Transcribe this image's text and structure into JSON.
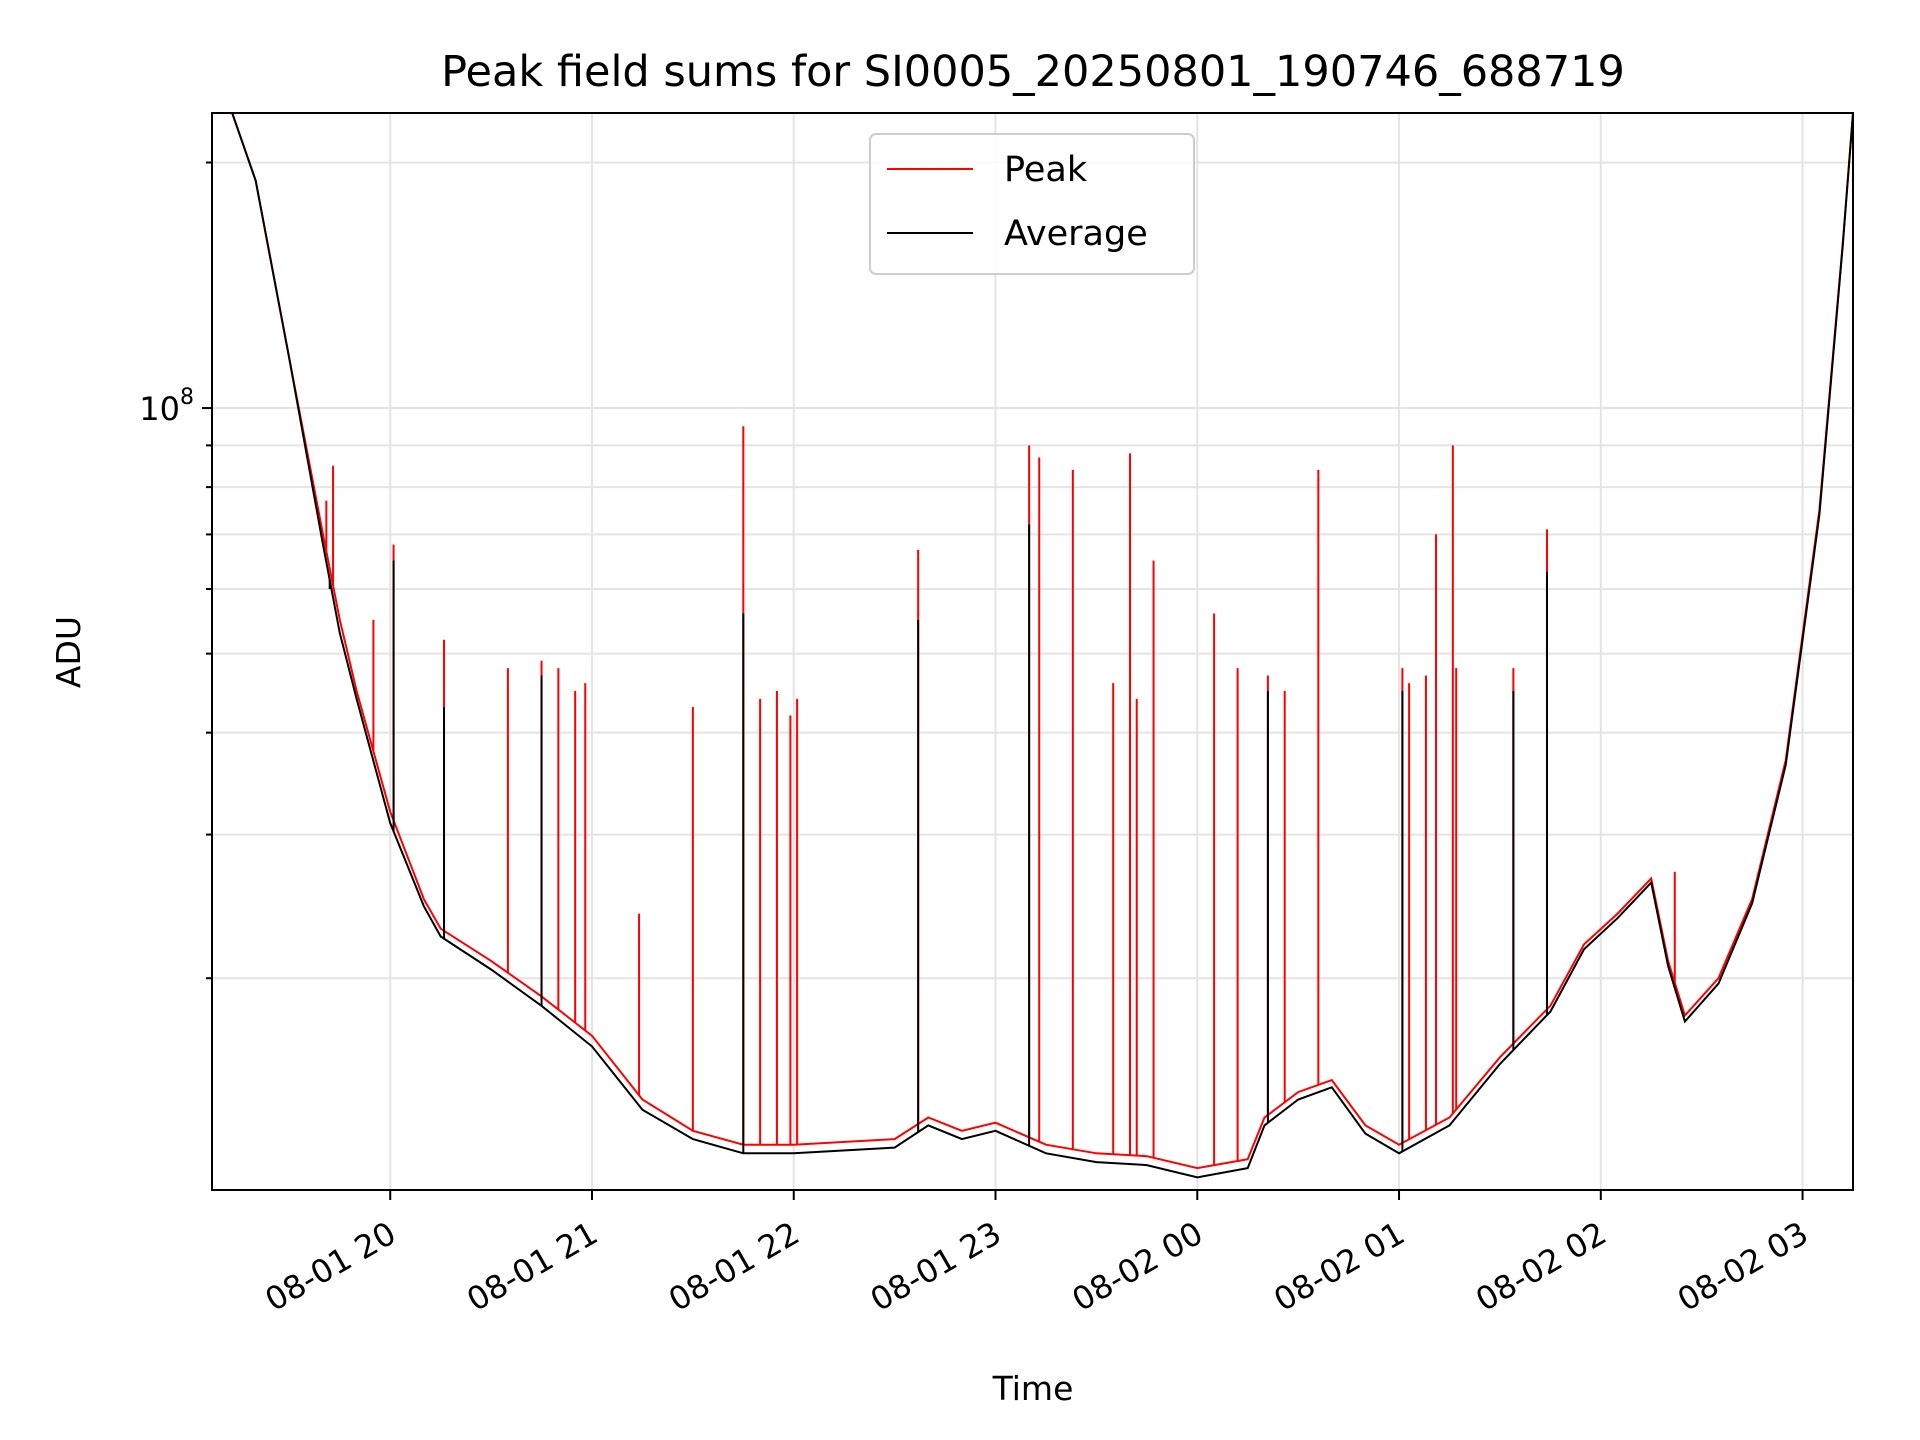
{
  "chart_data": {
    "type": "line",
    "title": "Peak field sums for SI0005_20250801_190746_688719",
    "xlabel": "Time",
    "ylabel": "ADU",
    "y_scale": "log",
    "x_range": [
      "2025-08-01 19:07",
      "2025-08-02 03:15"
    ],
    "ylim": [
      11000000,
      230000000
    ],
    "grid": true,
    "legend_position": "top-center",
    "x_ticks": [
      "08-01 20",
      "08-01 21",
      "08-01 22",
      "08-01 23",
      "08-02 00",
      "08-02 01",
      "08-02 02",
      "08-02 03"
    ],
    "y_tick_label": {
      "base": "10",
      "exponent": "8"
    },
    "series": [
      {
        "name": "Peak",
        "color": "#ff0000",
        "x": [
          "2025-08-01 19:07",
          "2025-08-01 19:13",
          "2025-08-01 19:20",
          "2025-08-01 19:30",
          "2025-08-01 19:40",
          "2025-08-01 19:45",
          "2025-08-01 19:50",
          "2025-08-01 20:00",
          "2025-08-01 20:10",
          "2025-08-01 20:15",
          "2025-08-01 20:30",
          "2025-08-01 20:45",
          "2025-08-01 21:00",
          "2025-08-01 21:15",
          "2025-08-01 21:30",
          "2025-08-01 21:45",
          "2025-08-01 22:00",
          "2025-08-01 22:30",
          "2025-08-01 22:40",
          "2025-08-01 22:50",
          "2025-08-01 23:00",
          "2025-08-01 23:15",
          "2025-08-01 23:30",
          "2025-08-01 23:45",
          "2025-08-02 00:00",
          "2025-08-02 00:15",
          "2025-08-02 00:20",
          "2025-08-02 00:30",
          "2025-08-02 00:40",
          "2025-08-02 00:50",
          "2025-08-02 01:00",
          "2025-08-02 01:15",
          "2025-08-02 01:30",
          "2025-08-02 01:45",
          "2025-08-02 01:55",
          "2025-08-02 02:05",
          "2025-08-02 02:15",
          "2025-08-02 02:20",
          "2025-08-02 02:25",
          "2025-08-02 02:35",
          "2025-08-02 02:45",
          "2025-08-02 02:55",
          "2025-08-02 03:05",
          "2025-08-02 03:12",
          "2025-08-02 03:15"
        ],
        "values": [
          230000000,
          230000000,
          190000000,
          115000000,
          70000000,
          55000000,
          45000000,
          32000000,
          25000000,
          23000000,
          21000000,
          19000000,
          17000000,
          14200000,
          13000000,
          12500000,
          12500000,
          12700000,
          13500000,
          13000000,
          13300000,
          12500000,
          12200000,
          12100000,
          11700000,
          12000000,
          13500000,
          14500000,
          15000000,
          13200000,
          12500000,
          13500000,
          16000000,
          18500000,
          22000000,
          24000000,
          26500000,
          21000000,
          18000000,
          20000000,
          25000000,
          37000000,
          75000000,
          160000000,
          230000000
        ],
        "spikes": [
          {
            "x": "2025-08-01 19:41",
            "value": 77000000
          },
          {
            "x": "2025-08-01 19:43",
            "value": 85000000
          },
          {
            "x": "2025-08-01 19:55",
            "value": 55000000
          },
          {
            "x": "2025-08-01 20:01",
            "value": 68000000
          },
          {
            "x": "2025-08-01 20:16",
            "value": 52000000
          },
          {
            "x": "2025-08-01 20:35",
            "value": 48000000
          },
          {
            "x": "2025-08-01 20:45",
            "value": 49000000
          },
          {
            "x": "2025-08-01 20:50",
            "value": 48000000
          },
          {
            "x": "2025-08-01 20:55",
            "value": 45000000
          },
          {
            "x": "2025-08-01 20:58",
            "value": 46000000
          },
          {
            "x": "2025-08-01 21:14",
            "value": 24000000
          },
          {
            "x": "2025-08-01 21:30",
            "value": 43000000
          },
          {
            "x": "2025-08-01 21:45",
            "value": 95000000
          },
          {
            "x": "2025-08-01 21:50",
            "value": 44000000
          },
          {
            "x": "2025-08-01 21:55",
            "value": 45000000
          },
          {
            "x": "2025-08-01 21:59",
            "value": 42000000
          },
          {
            "x": "2025-08-01 22:01",
            "value": 44000000
          },
          {
            "x": "2025-08-01 22:37",
            "value": 67000000
          },
          {
            "x": "2025-08-01 23:10",
            "value": 90000000
          },
          {
            "x": "2025-08-01 23:13",
            "value": 87000000
          },
          {
            "x": "2025-08-01 23:23",
            "value": 84000000
          },
          {
            "x": "2025-08-01 23:35",
            "value": 46000000
          },
          {
            "x": "2025-08-01 23:40",
            "value": 88000000
          },
          {
            "x": "2025-08-01 23:42",
            "value": 44000000
          },
          {
            "x": "2025-08-01 23:47",
            "value": 65000000
          },
          {
            "x": "2025-08-02 00:05",
            "value": 56000000
          },
          {
            "x": "2025-08-02 00:12",
            "value": 48000000
          },
          {
            "x": "2025-08-02 00:21",
            "value": 47000000
          },
          {
            "x": "2025-08-02 00:26",
            "value": 45000000
          },
          {
            "x": "2025-08-02 00:36",
            "value": 84000000
          },
          {
            "x": "2025-08-02 01:01",
            "value": 48000000
          },
          {
            "x": "2025-08-02 01:03",
            "value": 46000000
          },
          {
            "x": "2025-08-02 01:08",
            "value": 47000000
          },
          {
            "x": "2025-08-02 01:11",
            "value": 70000000
          },
          {
            "x": "2025-08-02 01:16",
            "value": 90000000
          },
          {
            "x": "2025-08-02 01:17",
            "value": 48000000
          },
          {
            "x": "2025-08-02 01:34",
            "value": 48000000
          },
          {
            "x": "2025-08-02 01:44",
            "value": 71000000
          },
          {
            "x": "2025-08-02 02:22",
            "value": 27000000
          }
        ]
      },
      {
        "name": "Average",
        "color": "#000000",
        "x": [
          "2025-08-01 19:07",
          "2025-08-01 19:13",
          "2025-08-01 19:20",
          "2025-08-01 19:30",
          "2025-08-01 19:40",
          "2025-08-01 19:45",
          "2025-08-01 19:50",
          "2025-08-01 20:00",
          "2025-08-01 20:10",
          "2025-08-01 20:15",
          "2025-08-01 20:30",
          "2025-08-01 20:45",
          "2025-08-01 21:00",
          "2025-08-01 21:15",
          "2025-08-01 21:30",
          "2025-08-01 21:45",
          "2025-08-01 22:00",
          "2025-08-01 22:30",
          "2025-08-01 22:40",
          "2025-08-01 22:50",
          "2025-08-01 23:00",
          "2025-08-01 23:15",
          "2025-08-01 23:30",
          "2025-08-01 23:45",
          "2025-08-02 00:00",
          "2025-08-02 00:15",
          "2025-08-02 00:20",
          "2025-08-02 00:30",
          "2025-08-02 00:40",
          "2025-08-02 00:50",
          "2025-08-02 01:00",
          "2025-08-02 01:15",
          "2025-08-02 01:30",
          "2025-08-02 01:45",
          "2025-08-02 01:55",
          "2025-08-02 02:05",
          "2025-08-02 02:15",
          "2025-08-02 02:20",
          "2025-08-02 02:25",
          "2025-08-02 02:35",
          "2025-08-02 02:45",
          "2025-08-02 02:55",
          "2025-08-02 03:05",
          "2025-08-02 03:12",
          "2025-08-02 03:15"
        ],
        "values": [
          230000000,
          230000000,
          190000000,
          115000000,
          68000000,
          53000000,
          44000000,
          31000000,
          24500000,
          22500000,
          20500000,
          18500000,
          16500000,
          13800000,
          12700000,
          12200000,
          12200000,
          12400000,
          13200000,
          12700000,
          13000000,
          12200000,
          11900000,
          11800000,
          11400000,
          11700000,
          13200000,
          14200000,
          14700000,
          12900000,
          12200000,
          13200000,
          15700000,
          18200000,
          21700000,
          23700000,
          26200000,
          20700000,
          17700000,
          19700000,
          24700000,
          36500000,
          74000000,
          159000000,
          230000000
        ],
        "spikes": [
          {
            "x": "2025-08-01 19:42",
            "value": 60000000
          },
          {
            "x": "2025-08-01 20:01",
            "value": 65000000
          },
          {
            "x": "2025-08-01 20:16",
            "value": 43000000
          },
          {
            "x": "2025-08-01 20:45",
            "value": 47000000
          },
          {
            "x": "2025-08-01 21:45",
            "value": 56000000
          },
          {
            "x": "2025-08-01 22:37",
            "value": 55000000
          },
          {
            "x": "2025-08-01 23:10",
            "value": 72000000
          },
          {
            "x": "2025-08-02 00:21",
            "value": 45000000
          },
          {
            "x": "2025-08-02 01:01",
            "value": 45000000
          },
          {
            "x": "2025-08-02 01:34",
            "value": 45000000
          },
          {
            "x": "2025-08-02 01:44",
            "value": 63000000
          }
        ]
      }
    ]
  }
}
